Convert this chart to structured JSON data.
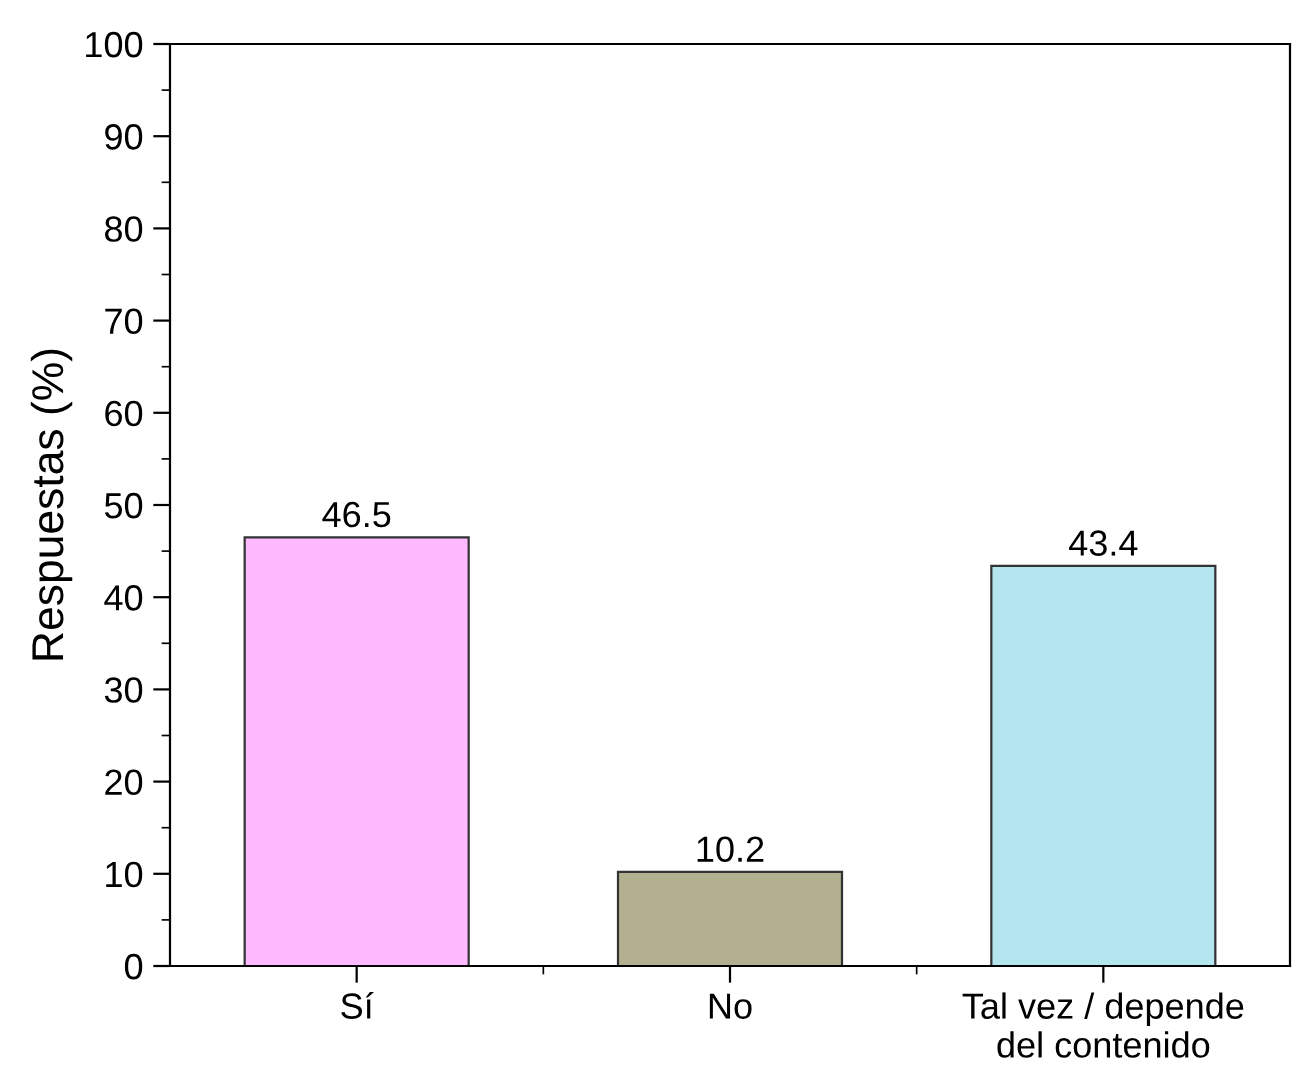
{
  "chart_data": {
    "type": "bar",
    "ylabel": "Respuestas (%)",
    "categories": [
      "Sí",
      "No",
      "Tal vez / depende\ndel contenido"
    ],
    "values": [
      46.5,
      10.2,
      43.4
    ],
    "colors": [
      "#ffb9ff",
      "#b3b08f",
      "#b3e6ee"
    ],
    "ylim": [
      0,
      100
    ],
    "yticks": [
      0,
      10,
      20,
      30,
      40,
      50,
      60,
      70,
      80,
      90,
      100
    ],
    "data_labels": true,
    "grid": false,
    "legend": false
  }
}
